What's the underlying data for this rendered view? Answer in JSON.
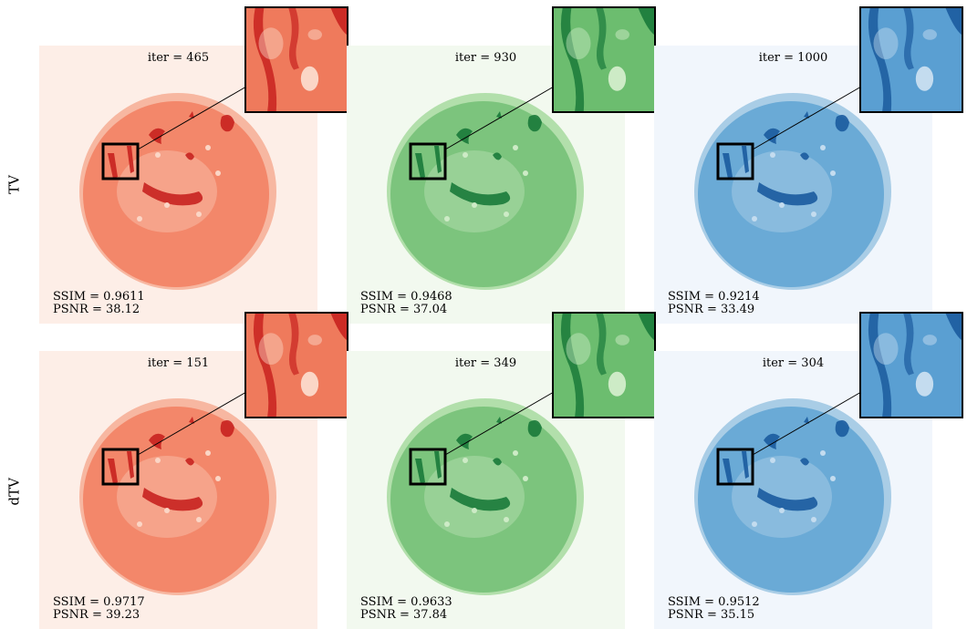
{
  "row_labels": [
    "TV",
    "dTV"
  ],
  "panels": [
    {
      "row": 0,
      "col": 0,
      "theme": "red",
      "iter": "iter = 465",
      "ssim": "SSIM = 0.9611",
      "psnr": "PSNR = 38.12"
    },
    {
      "row": 0,
      "col": 1,
      "theme": "green",
      "iter": "iter = 930",
      "ssim": "SSIM = 0.9468",
      "psnr": "PSNR = 37.04"
    },
    {
      "row": 0,
      "col": 2,
      "theme": "blue",
      "iter": "iter = 1000",
      "ssim": "SSIM = 0.9214",
      "psnr": "PSNR = 33.49"
    },
    {
      "row": 1,
      "col": 0,
      "theme": "red",
      "iter": "iter = 151",
      "ssim": "SSIM = 0.9717",
      "psnr": "PSNR = 39.23"
    },
    {
      "row": 1,
      "col": 1,
      "theme": "green",
      "iter": "iter = 349",
      "ssim": "SSIM = 0.9633",
      "psnr": "PSNR = 37.84"
    },
    {
      "row": 1,
      "col": 2,
      "theme": "blue",
      "iter": "iter = 304",
      "ssim": "SSIM = 0.9512",
      "psnr": "PSNR = 35.15"
    }
  ],
  "colors": {
    "red": {
      "bg": "#fdeee7",
      "disk": "#f3876a",
      "ring": "#f7b7a1",
      "dark": "#c8221f",
      "light": "#fbd6c6",
      "zoom": "#ef7a5c"
    },
    "green": {
      "bg": "#f2f9ef",
      "disk": "#7cc47d",
      "ring": "#b2dfab",
      "dark": "#1a7a3a",
      "light": "#cdebc6",
      "zoom": "#6cbd6f"
    },
    "blue": {
      "bg": "#f1f6fc",
      "disk": "#6aaad6",
      "ring": "#a9cde6",
      "dark": "#1b5b9e",
      "light": "#c4dcef",
      "zoom": "#5a9fd2"
    }
  }
}
